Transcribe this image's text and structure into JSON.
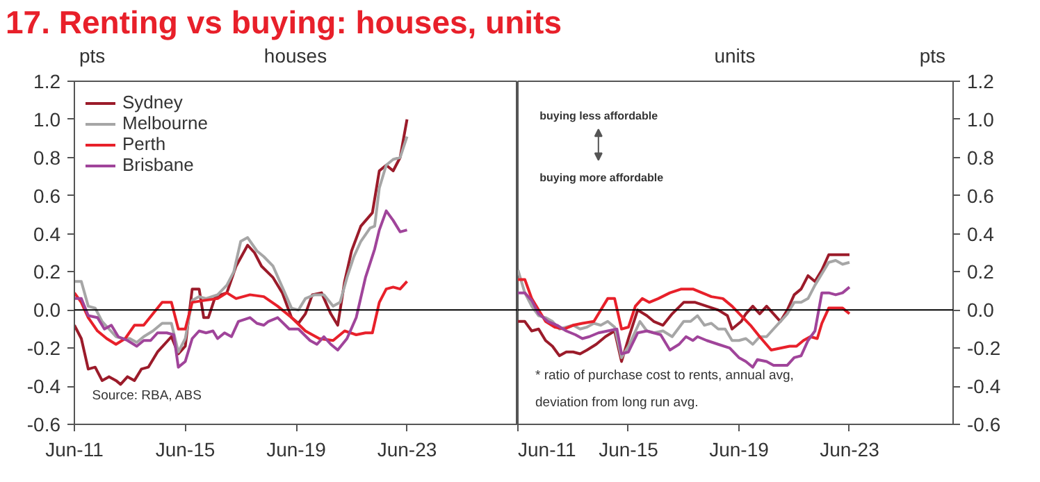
{
  "chart_data": [
    {
      "type": "line",
      "title": "17. Renting vs buying: houses, units",
      "subtitle": "houses",
      "ylabel": "pts",
      "legend": "top left",
      "grid": false,
      "line_style": "solid",
      "xlim": [
        "2011-06",
        "2027-06"
      ],
      "ylim": [
        -0.6,
        1.2
      ],
      "xticks": [
        {
          "value": "2011-06",
          "label": "Jun-11"
        },
        {
          "value": "2015-06",
          "label": "Jun-15"
        },
        {
          "value": "2019-06",
          "label": "Jun-19"
        },
        {
          "value": "2023-06",
          "label": "Jun-23"
        }
      ],
      "yticks": [
        {
          "value": -0.6,
          "label": "-0.6"
        },
        {
          "value": -0.4,
          "label": "-0.4"
        },
        {
          "value": -0.2,
          "label": "-0.2"
        },
        {
          "value": 0,
          "label": "0.0"
        },
        {
          "value": 0.2,
          "label": "0.2"
        },
        {
          "value": 0.4,
          "label": "0.4"
        },
        {
          "value": 0.6,
          "label": "0.6"
        },
        {
          "value": 0.8,
          "label": "0.8"
        },
        {
          "value": 1,
          "label": "1.0"
        },
        {
          "value": 1.2,
          "label": "1.2"
        }
      ],
      "ref_lines": [
        {
          "axis": "y",
          "value": 0,
          "color": "#000000"
        }
      ],
      "annotations": [
        "Source: RBA, ABS"
      ],
      "series": [
        {
          "name": "Sydney",
          "color": "#9b1b2a",
          "x": [
            "2011-06",
            "2011-09",
            "2011-12",
            "2012-03",
            "2012-06",
            "2012-09",
            "2012-12",
            "2013-02",
            "2013-05",
            "2013-08",
            "2013-11",
            "2014-02",
            "2014-06",
            "2014-12",
            "2015-03",
            "2015-06",
            "2015-09",
            "2015-12",
            "2016-02",
            "2016-04",
            "2016-07",
            "2016-12",
            "2017-04",
            "2017-09",
            "2017-12",
            "2018-03",
            "2018-08",
            "2018-12",
            "2019-04",
            "2019-07",
            "2019-10",
            "2020-01",
            "2020-05",
            "2020-09",
            "2020-12",
            "2021-03",
            "2021-06",
            "2021-10",
            "2022-03",
            "2022-06",
            "2022-09",
            "2022-12",
            "2023-03",
            "2023-06"
          ],
          "values": [
            -0.08,
            -0.15,
            -0.31,
            -0.3,
            -0.37,
            -0.35,
            -0.37,
            -0.39,
            -0.35,
            -0.37,
            -0.31,
            -0.3,
            -0.22,
            -0.14,
            -0.23,
            -0.19,
            0.11,
            0.11,
            -0.04,
            -0.04,
            0.07,
            0.09,
            0.23,
            0.34,
            0.3,
            0.23,
            0.17,
            0.09,
            -0.04,
            -0.07,
            -0.02,
            0.08,
            0.09,
            -0.02,
            -0.08,
            0.15,
            0.31,
            0.44,
            0.51,
            0.73,
            0.76,
            0.73,
            0.8,
            1.0
          ]
        },
        {
          "name": "Melbourne",
          "color": "#a6a6a6",
          "x": [
            "2011-06",
            "2011-09",
            "2011-12",
            "2012-03",
            "2012-06",
            "2012-09",
            "2012-12",
            "2013-03",
            "2013-06",
            "2013-09",
            "2013-12",
            "2014-04",
            "2014-08",
            "2014-12",
            "2015-03",
            "2015-06",
            "2015-09",
            "2015-12",
            "2016-03",
            "2016-08",
            "2016-12",
            "2017-03",
            "2017-06",
            "2017-09",
            "2018-01",
            "2018-04",
            "2018-08",
            "2018-12",
            "2019-04",
            "2019-07",
            "2019-10",
            "2020-02",
            "2020-06",
            "2020-10",
            "2021-01",
            "2021-04",
            "2021-07",
            "2021-10",
            "2022-02",
            "2022-04",
            "2022-06",
            "2022-09",
            "2022-12",
            "2023-03",
            "2023-06"
          ],
          "values": [
            0.15,
            0.15,
            0.02,
            0.01,
            -0.06,
            -0.1,
            -0.14,
            -0.15,
            -0.15,
            -0.17,
            -0.14,
            -0.11,
            -0.07,
            -0.07,
            -0.22,
            -0.15,
            0.05,
            0.07,
            0.06,
            0.08,
            0.13,
            0.2,
            0.36,
            0.38,
            0.31,
            0.28,
            0.23,
            0.12,
            0.01,
            0.0,
            0.06,
            0.08,
            0.08,
            0.02,
            0.04,
            0.17,
            0.28,
            0.36,
            0.43,
            0.44,
            0.64,
            0.76,
            0.79,
            0.8,
            0.91
          ]
        },
        {
          "name": "Perth",
          "color": "#e8202a",
          "x": [
            "2011-06",
            "2011-09",
            "2011-12",
            "2012-04",
            "2012-08",
            "2012-12",
            "2013-04",
            "2013-08",
            "2013-12",
            "2014-04",
            "2014-08",
            "2014-12",
            "2015-03",
            "2015-06",
            "2015-09",
            "2016-02",
            "2016-08",
            "2016-12",
            "2017-04",
            "2017-10",
            "2018-04",
            "2018-10",
            "2019-04",
            "2019-10",
            "2020-04",
            "2020-10",
            "2021-03",
            "2021-08",
            "2021-12",
            "2022-03",
            "2022-06",
            "2022-09",
            "2022-12",
            "2023-03",
            "2023-06"
          ],
          "values": [
            0.09,
            0.04,
            -0.04,
            -0.11,
            -0.15,
            -0.18,
            -0.15,
            -0.08,
            -0.08,
            -0.02,
            0.04,
            0.04,
            -0.1,
            -0.1,
            0.04,
            0.05,
            0.06,
            0.09,
            0.06,
            0.08,
            0.07,
            0.02,
            -0.04,
            -0.11,
            -0.15,
            -0.16,
            -0.11,
            -0.13,
            -0.12,
            -0.12,
            0.04,
            0.11,
            0.12,
            0.11,
            0.15
          ]
        },
        {
          "name": "Brisbane",
          "color": "#a0449a",
          "x": [
            "2011-06",
            "2011-09",
            "2011-12",
            "2012-04",
            "2012-07",
            "2012-10",
            "2013-01",
            "2013-05",
            "2013-09",
            "2013-12",
            "2014-03",
            "2014-06",
            "2014-10",
            "2015-01",
            "2015-03",
            "2015-06",
            "2015-09",
            "2015-12",
            "2016-03",
            "2016-06",
            "2016-08",
            "2016-11",
            "2017-02",
            "2017-05",
            "2017-10",
            "2018-01",
            "2018-04",
            "2018-06",
            "2018-10",
            "2019-03",
            "2019-07",
            "2019-12",
            "2020-03",
            "2020-06",
            "2020-09",
            "2020-12",
            "2021-04",
            "2021-08",
            "2021-12",
            "2022-04",
            "2022-06",
            "2022-09",
            "2022-12",
            "2023-03",
            "2023-06"
          ],
          "values": [
            0.06,
            0.06,
            -0.03,
            -0.04,
            -0.1,
            -0.08,
            -0.14,
            -0.16,
            -0.19,
            -0.16,
            -0.16,
            -0.12,
            -0.12,
            -0.13,
            -0.3,
            -0.27,
            -0.15,
            -0.11,
            -0.12,
            -0.11,
            -0.15,
            -0.12,
            -0.14,
            -0.06,
            -0.04,
            -0.07,
            -0.08,
            -0.06,
            -0.04,
            -0.1,
            -0.1,
            -0.16,
            -0.18,
            -0.14,
            -0.18,
            -0.21,
            -0.15,
            -0.04,
            0.17,
            0.32,
            0.42,
            0.52,
            0.47,
            0.41,
            0.42
          ]
        }
      ]
    },
    {
      "type": "line",
      "subtitle": "units",
      "ylabel": "pts",
      "grid": false,
      "line_style": "solid",
      "xlim": [
        "2011-06",
        "2027-03"
      ],
      "ylim": [
        -0.6,
        1.2
      ],
      "xticks": [
        {
          "value": "2011-06",
          "label": "Jun-11"
        },
        {
          "value": "2015-06",
          "label": "Jun-15"
        },
        {
          "value": "2019-06",
          "label": "Jun-19"
        },
        {
          "value": "2023-06",
          "label": "Jun-23"
        }
      ],
      "yticks": [
        {
          "value": -0.6,
          "label": "-0.6"
        },
        {
          "value": -0.4,
          "label": "-0.4"
        },
        {
          "value": -0.2,
          "label": "-0.2"
        },
        {
          "value": 0,
          "label": "0.0"
        },
        {
          "value": 0.2,
          "label": "0.2"
        },
        {
          "value": 0.4,
          "label": "0.4"
        },
        {
          "value": 0.6,
          "label": "0.6"
        },
        {
          "value": 0.8,
          "label": "0.8"
        },
        {
          "value": 1,
          "label": "1.0"
        },
        {
          "value": 1.2,
          "label": "1.2"
        }
      ],
      "ref_lines": [
        {
          "axis": "y",
          "value": 0,
          "color": "#000000"
        }
      ],
      "annotations": [
        "buying less affordable",
        "buying more affordable",
        "* ratio of purchase cost to rents, annual avg,",
        "deviation from long run avg."
      ],
      "series": [
        {
          "color": "#9b1b2a",
          "x": [
            "2011-06",
            "2011-09",
            "2011-12",
            "2012-03",
            "2012-06",
            "2012-09",
            "2012-12",
            "2013-03",
            "2013-06",
            "2013-09",
            "2013-12",
            "2014-04",
            "2014-08",
            "2014-12",
            "2015-03",
            "2015-06",
            "2015-10",
            "2016-02",
            "2016-05",
            "2016-09",
            "2017-01",
            "2017-06",
            "2017-11",
            "2018-04",
            "2018-09",
            "2019-01",
            "2019-03",
            "2019-07",
            "2019-09",
            "2019-12",
            "2020-03",
            "2020-06",
            "2020-09",
            "2020-12",
            "2021-03",
            "2021-06",
            "2021-09",
            "2021-12",
            "2022-03",
            "2022-06",
            "2022-09",
            "2022-12",
            "2023-03",
            "2023-06"
          ],
          "values": [
            -0.06,
            -0.06,
            -0.11,
            -0.1,
            -0.16,
            -0.19,
            -0.24,
            -0.22,
            -0.22,
            -0.23,
            -0.21,
            -0.18,
            -0.14,
            -0.11,
            -0.27,
            -0.15,
            0.0,
            -0.03,
            -0.06,
            -0.08,
            -0.02,
            0.04,
            0.04,
            0.02,
            0.0,
            -0.03,
            -0.1,
            -0.06,
            -0.02,
            0.02,
            -0.02,
            0.02,
            -0.02,
            -0.06,
            0.0,
            0.08,
            0.11,
            0.18,
            0.15,
            0.21,
            0.29,
            0.29,
            0.29,
            0.29
          ]
        },
        {
          "color": "#a6a6a6",
          "x": [
            "2011-06",
            "2011-09",
            "2011-12",
            "2012-03",
            "2012-06",
            "2012-09",
            "2012-12",
            "2013-03",
            "2013-06",
            "2013-09",
            "2013-12",
            "2014-03",
            "2014-06",
            "2014-09",
            "2014-12",
            "2015-03",
            "2015-06",
            "2015-11",
            "2016-02",
            "2016-05",
            "2016-09",
            "2017-01",
            "2017-06",
            "2017-09",
            "2017-12",
            "2018-03",
            "2018-06",
            "2018-09",
            "2018-12",
            "2019-03",
            "2019-06",
            "2019-09",
            "2019-12",
            "2020-03",
            "2020-06",
            "2020-09",
            "2020-12",
            "2021-03",
            "2021-06",
            "2021-09",
            "2021-12",
            "2022-03",
            "2022-06",
            "2022-09",
            "2022-12",
            "2023-03",
            "2023-06"
          ],
          "values": [
            0.21,
            0.09,
            0.02,
            -0.03,
            -0.04,
            -0.06,
            -0.1,
            -0.09,
            -0.08,
            -0.1,
            -0.09,
            -0.07,
            -0.08,
            -0.06,
            -0.09,
            -0.25,
            -0.19,
            -0.06,
            -0.11,
            -0.12,
            -0.11,
            -0.14,
            -0.06,
            -0.06,
            -0.03,
            -0.08,
            -0.07,
            -0.1,
            -0.1,
            -0.16,
            -0.16,
            -0.15,
            -0.18,
            -0.14,
            -0.14,
            -0.1,
            -0.06,
            -0.02,
            0.04,
            0.04,
            0.06,
            0.13,
            0.19,
            0.25,
            0.26,
            0.24,
            0.25
          ]
        },
        {
          "color": "#e8202a",
          "x": [
            "2011-06",
            "2011-09",
            "2011-12",
            "2012-03",
            "2012-06",
            "2012-10",
            "2013-02",
            "2013-06",
            "2013-10",
            "2014-03",
            "2014-06",
            "2014-09",
            "2014-12",
            "2015-03",
            "2015-06",
            "2015-09",
            "2015-12",
            "2016-03",
            "2016-07",
            "2016-12",
            "2017-05",
            "2017-10",
            "2018-02",
            "2018-06",
            "2018-11",
            "2019-03",
            "2019-07",
            "2019-11",
            "2020-03",
            "2020-08",
            "2020-12",
            "2021-04",
            "2021-07",
            "2021-10",
            "2022-01",
            "2022-04",
            "2022-06",
            "2022-09",
            "2022-12",
            "2023-03",
            "2023-06"
          ],
          "values": [
            0.16,
            0.16,
            0.06,
            0.0,
            -0.06,
            -0.09,
            -0.1,
            -0.08,
            -0.07,
            -0.06,
            0.0,
            0.06,
            0.06,
            -0.1,
            -0.09,
            0.02,
            0.06,
            0.04,
            0.06,
            0.09,
            0.11,
            0.11,
            0.09,
            0.07,
            0.06,
            0.02,
            -0.03,
            -0.08,
            -0.14,
            -0.21,
            -0.2,
            -0.19,
            -0.19,
            -0.16,
            -0.14,
            -0.15,
            -0.07,
            0.01,
            0.01,
            0.01,
            -0.02
          ]
        },
        {
          "color": "#a0449a",
          "x": [
            "2011-06",
            "2011-09",
            "2011-12",
            "2012-03",
            "2012-07",
            "2012-11",
            "2013-03",
            "2013-07",
            "2013-10",
            "2014-01",
            "2014-05",
            "2014-09",
            "2015-01",
            "2015-03",
            "2015-06",
            "2015-10",
            "2016-02",
            "2016-05",
            "2016-08",
            "2016-12",
            "2017-04",
            "2017-07",
            "2017-10",
            "2017-12",
            "2018-04",
            "2018-09",
            "2019-02",
            "2019-06",
            "2019-09",
            "2019-12",
            "2020-02",
            "2020-06",
            "2020-09",
            "2020-12",
            "2021-03",
            "2021-06",
            "2021-09",
            "2021-12",
            "2022-03",
            "2022-06",
            "2022-09",
            "2022-12",
            "2023-03",
            "2023-06"
          ],
          "values": [
            0.09,
            0.09,
            0.05,
            -0.02,
            -0.06,
            -0.08,
            -0.11,
            -0.13,
            -0.15,
            -0.14,
            -0.12,
            -0.11,
            -0.1,
            -0.23,
            -0.22,
            -0.12,
            -0.11,
            -0.12,
            -0.13,
            -0.21,
            -0.18,
            -0.14,
            -0.16,
            -0.14,
            -0.16,
            -0.18,
            -0.2,
            -0.25,
            -0.27,
            -0.3,
            -0.26,
            -0.27,
            -0.29,
            -0.29,
            -0.29,
            -0.25,
            -0.24,
            -0.16,
            -0.11,
            0.09,
            0.09,
            0.08,
            0.09,
            0.12
          ]
        }
      ]
    }
  ]
}
